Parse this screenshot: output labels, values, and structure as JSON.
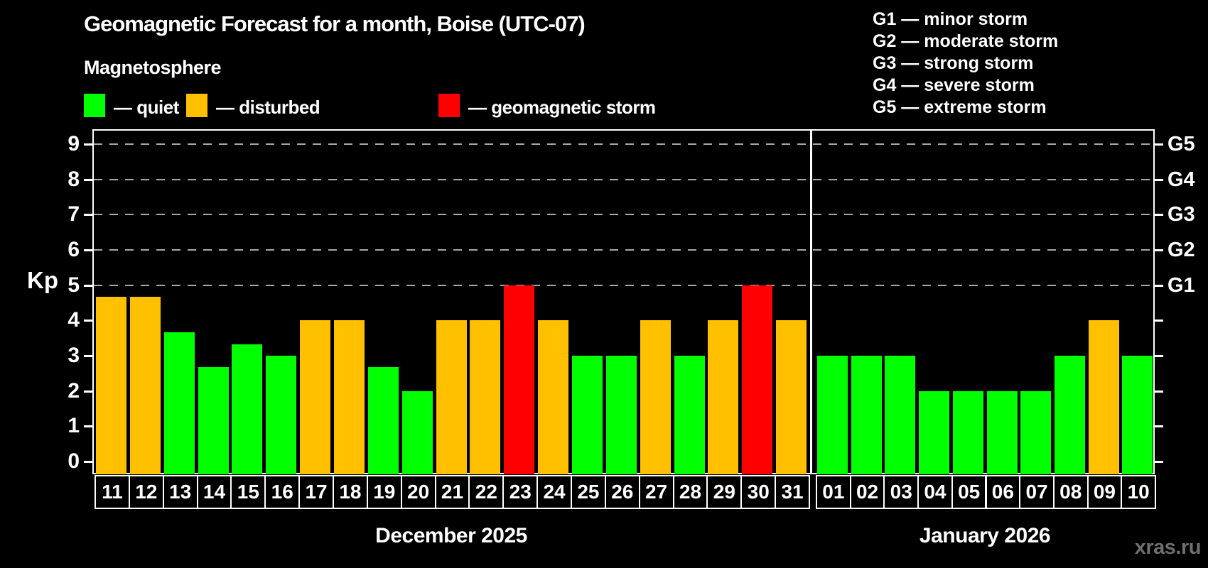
{
  "chart_data": {
    "type": "bar",
    "title": "Geomagnetic Forecast for a month, Boise (UTC-07)",
    "subtitle": "Magnetosphere",
    "ylabel": "Kp",
    "ylim": [
      -0.36,
      9.42
    ],
    "yticks": [
      0,
      1,
      2,
      3,
      4,
      5,
      6,
      7,
      8,
      9
    ],
    "gridlines": [
      5,
      6,
      7,
      8,
      9
    ],
    "right_axis": [
      {
        "label": "G1",
        "value": 5
      },
      {
        "label": "G2",
        "value": 6
      },
      {
        "label": "G3",
        "value": 7
      },
      {
        "label": "G4",
        "value": 8
      },
      {
        "label": "G5",
        "value": 9
      }
    ],
    "legend": [
      {
        "label": "— quiet",
        "status": "quiet",
        "color": "#00ff00"
      },
      {
        "label": "— disturbed",
        "status": "disturbed",
        "color": "#ffc000"
      },
      {
        "label": "— geomagnetic storm",
        "status": "storm",
        "color": "#ff0000"
      }
    ],
    "g_legend": [
      "G1 — minor storm",
      "G2 — moderate storm",
      "G3 — strong storm",
      "G4 — severe storm",
      "G5 — extreme storm"
    ],
    "status_colors": {
      "quiet": "#00ff00",
      "disturbed": "#ffc000",
      "storm": "#ff0000"
    },
    "months": [
      {
        "label": "December 2025",
        "days": [
          {
            "day": "11",
            "kp": 4.67,
            "status": "disturbed"
          },
          {
            "day": "12",
            "kp": 4.67,
            "status": "disturbed"
          },
          {
            "day": "13",
            "kp": 3.67,
            "status": "quiet"
          },
          {
            "day": "14",
            "kp": 2.67,
            "status": "quiet"
          },
          {
            "day": "15",
            "kp": 3.33,
            "status": "quiet"
          },
          {
            "day": "16",
            "kp": 3.0,
            "status": "quiet"
          },
          {
            "day": "17",
            "kp": 4.0,
            "status": "disturbed"
          },
          {
            "day": "18",
            "kp": 4.0,
            "status": "disturbed"
          },
          {
            "day": "19",
            "kp": 2.67,
            "status": "quiet"
          },
          {
            "day": "20",
            "kp": 2.0,
            "status": "quiet"
          },
          {
            "day": "21",
            "kp": 4.0,
            "status": "disturbed"
          },
          {
            "day": "22",
            "kp": 4.0,
            "status": "disturbed"
          },
          {
            "day": "23",
            "kp": 5.0,
            "status": "storm"
          },
          {
            "day": "24",
            "kp": 4.0,
            "status": "disturbed"
          },
          {
            "day": "25",
            "kp": 3.0,
            "status": "quiet"
          },
          {
            "day": "26",
            "kp": 3.0,
            "status": "quiet"
          },
          {
            "day": "27",
            "kp": 4.0,
            "status": "disturbed"
          },
          {
            "day": "28",
            "kp": 3.0,
            "status": "quiet"
          },
          {
            "day": "29",
            "kp": 4.0,
            "status": "disturbed"
          },
          {
            "day": "30",
            "kp": 5.0,
            "status": "storm"
          },
          {
            "day": "31",
            "kp": 4.0,
            "status": "disturbed"
          }
        ]
      },
      {
        "label": "January 2026",
        "days": [
          {
            "day": "01",
            "kp": 3.0,
            "status": "quiet"
          },
          {
            "day": "02",
            "kp": 3.0,
            "status": "quiet"
          },
          {
            "day": "03",
            "kp": 3.0,
            "status": "quiet"
          },
          {
            "day": "04",
            "kp": 2.0,
            "status": "quiet"
          },
          {
            "day": "05",
            "kp": 2.0,
            "status": "quiet"
          },
          {
            "day": "06",
            "kp": 2.0,
            "status": "quiet"
          },
          {
            "day": "07",
            "kp": 2.0,
            "status": "quiet"
          },
          {
            "day": "08",
            "kp": 3.0,
            "status": "quiet"
          },
          {
            "day": "09",
            "kp": 4.0,
            "status": "disturbed"
          },
          {
            "day": "10",
            "kp": 3.0,
            "status": "quiet"
          }
        ]
      }
    ],
    "watermark": "xras.ru"
  }
}
